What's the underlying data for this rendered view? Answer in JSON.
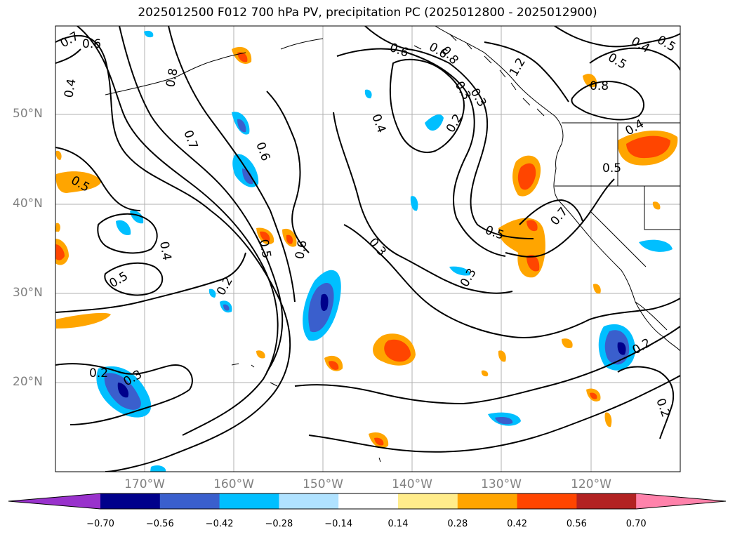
{
  "title": "2025012500 F012 700 hPa PV, precipitation PC (2025012800 - 2025012900)",
  "lat_labels": [
    "50°N",
    "40°N",
    "30°N",
    "20°N"
  ],
  "lon_labels": [
    "170°W",
    "160°W",
    "150°W",
    "140°W",
    "130°W",
    "120°W"
  ],
  "colorbar": {
    "ticks": [
      "−0.70",
      "−0.56",
      "−0.42",
      "−0.28",
      "−0.14",
      "0.14",
      "0.28",
      "0.42",
      "0.56",
      "0.70"
    ],
    "colors": [
      "#9932cc",
      "#00008b",
      "#3a5fcd",
      "#00bfff",
      "#b0e2ff",
      "#ffffff",
      "#ffec8b",
      "#ffa500",
      "#ff4500",
      "#b22222",
      "#ff82ab"
    ]
  },
  "contour_labels": [
    "0.7",
    "0.6",
    "0.4",
    "0.8",
    "0.7",
    "0.6",
    "0.5",
    "0.5",
    "0.4",
    "0.5",
    "0.2",
    "0.2",
    "0.3",
    "0.6",
    "0.6",
    "0.3",
    "0.4",
    "0.2",
    "0.3",
    "0.6",
    "0.8",
    "1.2",
    "0.3",
    "0.5",
    "0.5",
    "0.7",
    "0.5",
    "0.4",
    "0.8",
    "0.5",
    "0.4",
    "0.2",
    "0.2",
    "0.3"
  ],
  "colors": {
    "land": "#000000",
    "grid": "#b0b0b0",
    "contour": "#000000"
  }
}
